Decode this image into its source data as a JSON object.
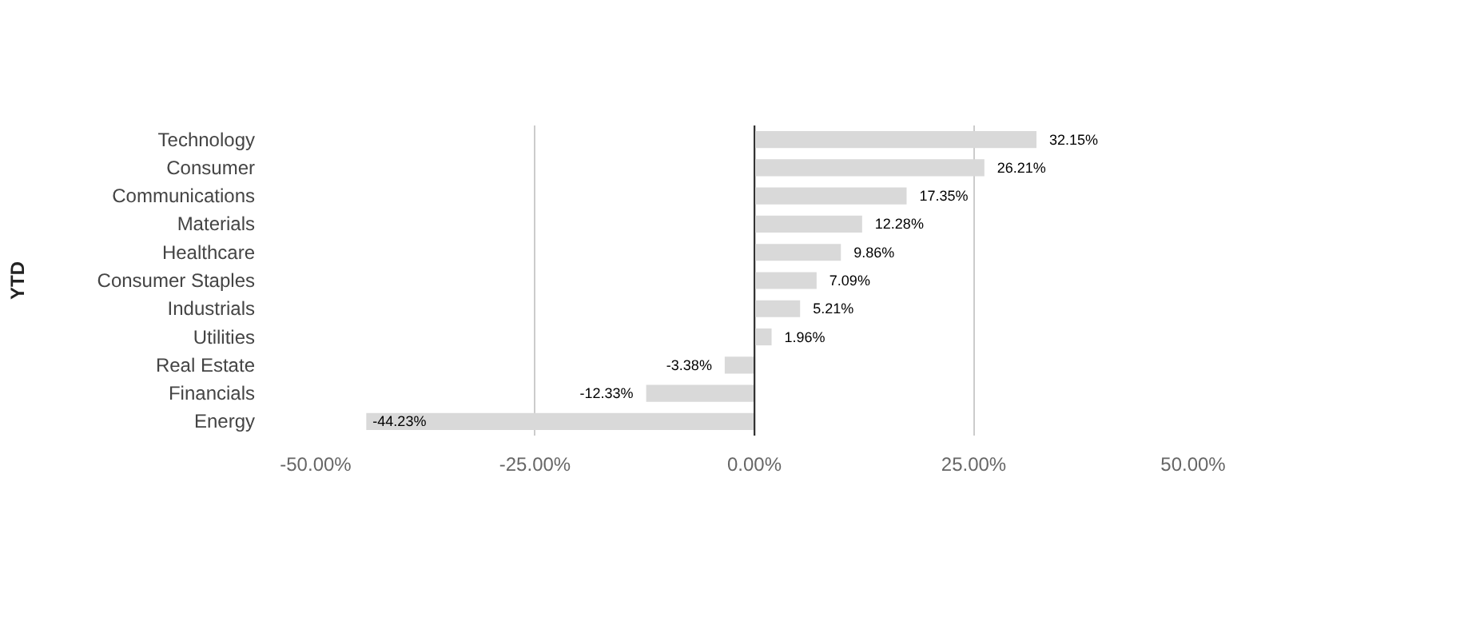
{
  "chart_data": {
    "type": "bar",
    "orientation": "horizontal",
    "ylabel": "YTD",
    "categories": [
      "Technology",
      "Consumer",
      "Communications",
      "Materials",
      "Healthcare",
      "Consumer Staples",
      "Industrials",
      "Utilities",
      "Real Estate",
      "Financials",
      "Energy"
    ],
    "values": [
      32.15,
      26.21,
      17.35,
      12.28,
      9.86,
      7.09,
      5.21,
      1.96,
      -3.38,
      -12.33,
      -44.23
    ],
    "value_labels": [
      "32.15%",
      "26.21%",
      "17.35%",
      "12.28%",
      "9.86%",
      "7.09%",
      "5.21%",
      "1.96%",
      "-3.38%",
      "-12.33%",
      "-44.23%"
    ],
    "color": "#d9d9d9",
    "xlim": [
      -50,
      50
    ],
    "xticks": [
      {
        "value": -50,
        "label": "-50.00%"
      },
      {
        "value": -25,
        "label": "-25.00%"
      },
      {
        "value": 0,
        "label": "0.00%"
      },
      {
        "value": 25,
        "label": "25.00%"
      },
      {
        "value": 50,
        "label": "50.00%"
      }
    ],
    "ref_lines": [
      {
        "axis": "x",
        "value": 0,
        "color": "#333333"
      }
    ],
    "grid": "x"
  }
}
